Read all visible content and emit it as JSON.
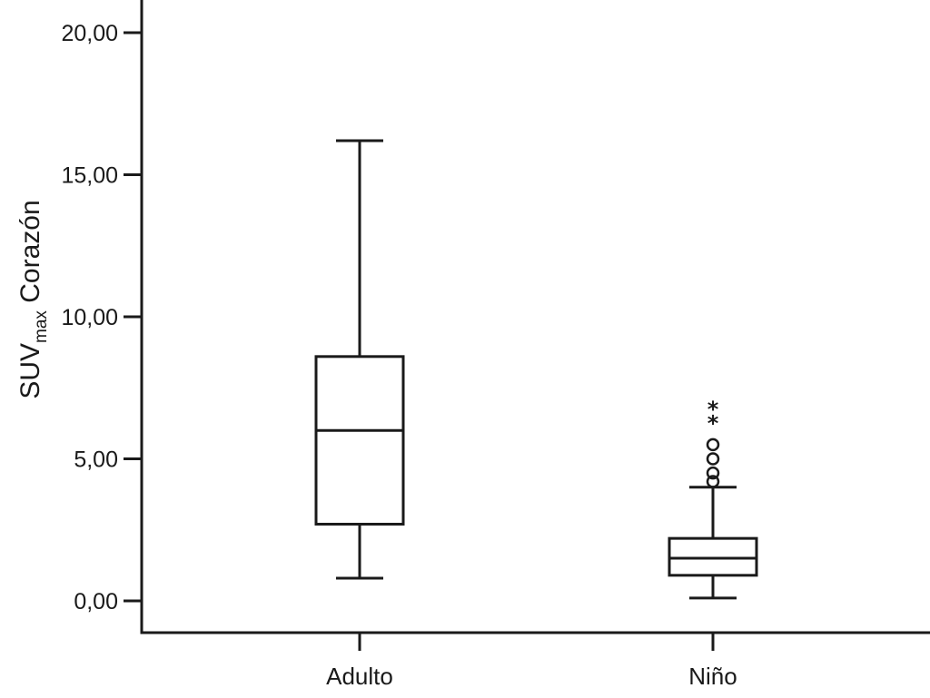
{
  "chart_data": {
    "type": "boxplot",
    "title": "",
    "ylabel": {
      "main": "SUV",
      "subscript": "max",
      "suffix": " Corazón"
    },
    "xlabel": "",
    "ylim": [
      -1.0,
      21.0
    ],
    "yticks": [
      0,
      5,
      10,
      15,
      20
    ],
    "ytick_labels": [
      "0,00",
      "5,00",
      "10,00",
      "15,00",
      "20,00"
    ],
    "categories": [
      "Adulto",
      "Niño"
    ],
    "grid": false,
    "legend": "none",
    "line_color": "#1a1a1a",
    "series": [
      {
        "category": "Adulto",
        "whisker_low": 0.8,
        "q1": 2.7,
        "median": 6.0,
        "q3": 8.6,
        "whisker_high": 16.2,
        "outliers": [],
        "extremes": []
      },
      {
        "category": "Niño",
        "whisker_low": 0.1,
        "q1": 0.9,
        "median": 1.5,
        "q3": 2.2,
        "whisker_high": 4.0,
        "outliers": [
          4.2,
          4.5,
          5.0,
          5.5
        ],
        "extremes": [
          6.4,
          6.9
        ]
      }
    ]
  }
}
